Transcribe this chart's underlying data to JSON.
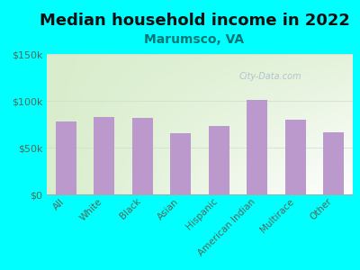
{
  "title": "Median household income in 2022",
  "subtitle": "Marumsco, VA",
  "categories": [
    "All",
    "White",
    "Black",
    "Asian",
    "Hispanic",
    "American Indian",
    "Multirace",
    "Other"
  ],
  "values": [
    78000,
    83000,
    82000,
    65000,
    73000,
    101000,
    80000,
    66000
  ],
  "bar_color": "#bb99cc",
  "background_color": "#00FFFF",
  "plot_bg_color_left": "#d8edcc",
  "plot_bg_color_right": "#f5fff5",
  "ylim": [
    0,
    150000
  ],
  "yticks": [
    0,
    50000,
    100000,
    150000
  ],
  "ytick_labels": [
    "$0",
    "$50k",
    "$100k",
    "$150k"
  ],
  "title_fontsize": 13,
  "subtitle_fontsize": 10,
  "subtitle_color": "#007777",
  "tick_color": "#556655",
  "watermark": "City-Data.com",
  "watermark_color": "#aabbcc"
}
